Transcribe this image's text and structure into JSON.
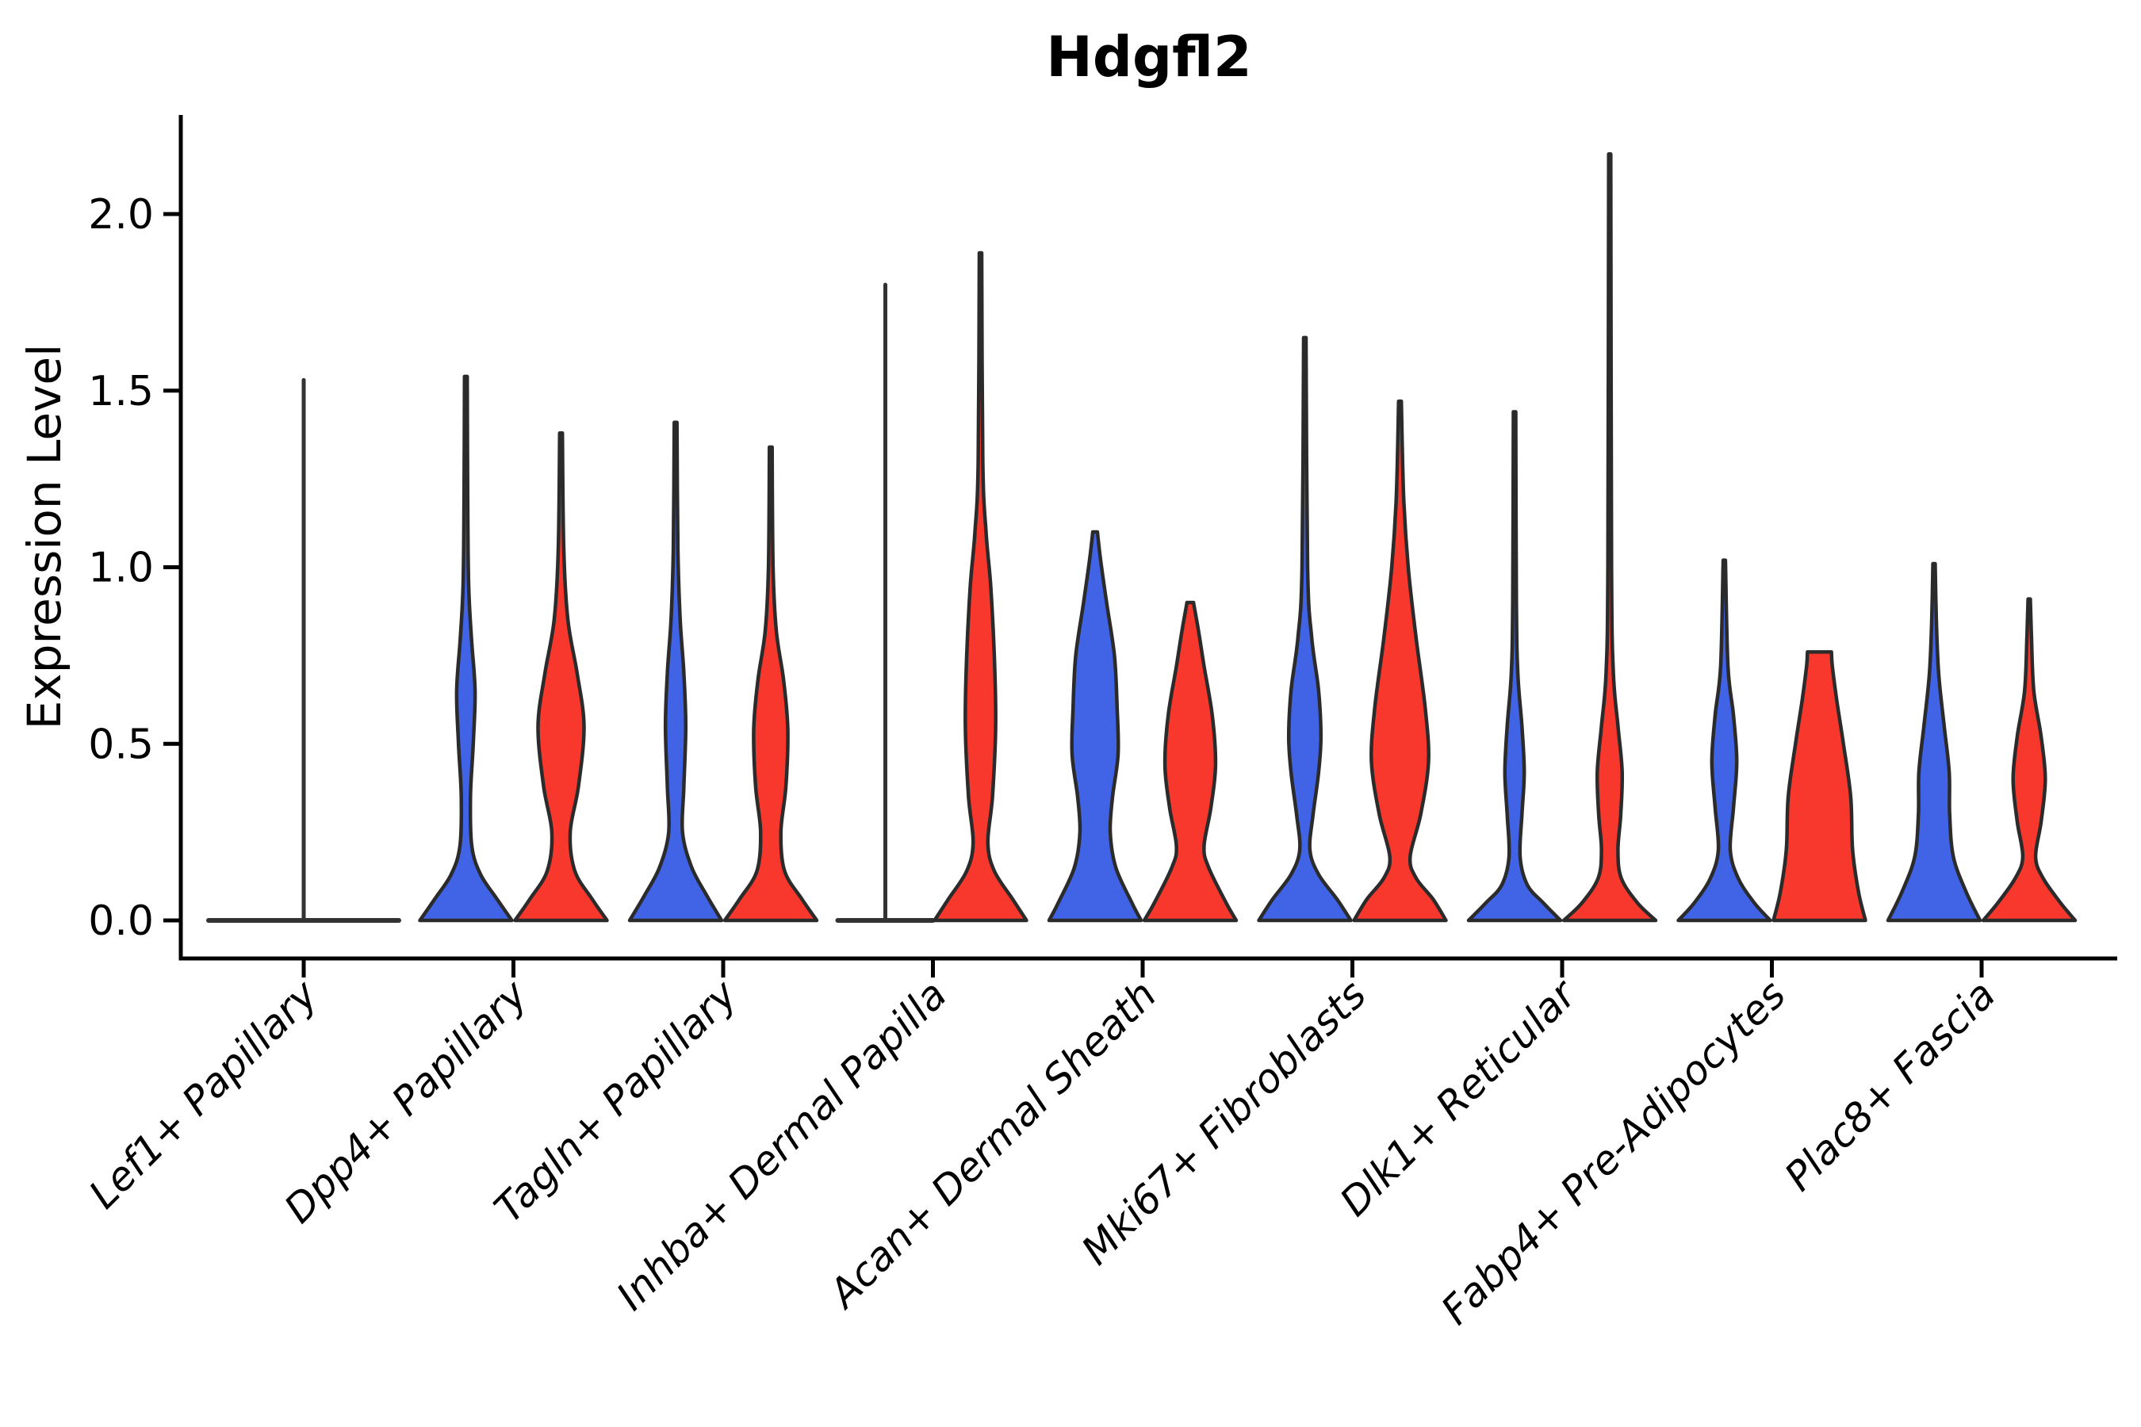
{
  "chart_data": {
    "type": "violin",
    "title": "Hdgfl2",
    "ylabel": "Expression Level",
    "xlabel": "",
    "ylim": [
      0,
      2.28
    ],
    "yticks": [
      0.0,
      0.5,
      1.0,
      1.5,
      2.0
    ],
    "ytick_labels": [
      "0.0",
      "0.5",
      "1.0",
      "1.5",
      "2.0"
    ],
    "grid": false,
    "legend": "none",
    "categories": [
      "Lef1+ Papillary",
      "Dpp4+ Papillary",
      "Tagln+ Papillary",
      "Inhba+ Dermal Papilla",
      "Acan+ Dermal Sheath",
      "Mki67+ Fibroblasts",
      "Dlk1+ Reticular",
      "Fabp4+ Pre-Adipocytes",
      "Plac8+ Fascia"
    ],
    "series_colors": {
      "blue": "#4064E5",
      "red": "#F8382D"
    },
    "violins": [
      {
        "category_index": 0,
        "group": "single",
        "flat": true,
        "max": 1.53,
        "center_offset": 0,
        "half_width": 120,
        "profile": []
      },
      {
        "category_index": 1,
        "group": "blue",
        "flat": false,
        "max": 1.54,
        "center_offset": -60,
        "half_width": 58,
        "profile": [
          [
            0,
            1
          ],
          [
            0.06,
            0.68
          ],
          [
            0.13,
            0.32
          ],
          [
            0.21,
            0.13
          ],
          [
            0.35,
            0.1
          ],
          [
            0.5,
            0.16
          ],
          [
            0.65,
            0.2
          ],
          [
            0.8,
            0.12
          ],
          [
            0.95,
            0.06
          ],
          [
            1.2,
            0.04
          ],
          [
            1.54,
            0.03
          ]
        ]
      },
      {
        "category_index": 1,
        "group": "red",
        "flat": false,
        "max": 1.38,
        "center_offset": 60,
        "half_width": 58,
        "profile": [
          [
            0,
            1
          ],
          [
            0.06,
            0.68
          ],
          [
            0.14,
            0.3
          ],
          [
            0.25,
            0.2
          ],
          [
            0.38,
            0.38
          ],
          [
            0.55,
            0.5
          ],
          [
            0.7,
            0.35
          ],
          [
            0.85,
            0.15
          ],
          [
            1.05,
            0.06
          ],
          [
            1.38,
            0.03
          ]
        ]
      },
      {
        "category_index": 2,
        "group": "blue",
        "flat": false,
        "max": 1.41,
        "center_offset": -60,
        "half_width": 58,
        "profile": [
          [
            0,
            1
          ],
          [
            0.07,
            0.68
          ],
          [
            0.15,
            0.35
          ],
          [
            0.25,
            0.15
          ],
          [
            0.38,
            0.18
          ],
          [
            0.55,
            0.22
          ],
          [
            0.7,
            0.18
          ],
          [
            0.85,
            0.1
          ],
          [
            1.05,
            0.05
          ],
          [
            1.41,
            0.03
          ]
        ]
      },
      {
        "category_index": 2,
        "group": "red",
        "flat": false,
        "max": 1.34,
        "center_offset": 60,
        "half_width": 58,
        "profile": [
          [
            0,
            1
          ],
          [
            0.06,
            0.68
          ],
          [
            0.14,
            0.3
          ],
          [
            0.25,
            0.22
          ],
          [
            0.38,
            0.33
          ],
          [
            0.54,
            0.37
          ],
          [
            0.68,
            0.28
          ],
          [
            0.82,
            0.12
          ],
          [
            1.0,
            0.05
          ],
          [
            1.34,
            0.03
          ]
        ]
      },
      {
        "category_index": 3,
        "group": "blue",
        "flat": true,
        "max": 1.8,
        "center_offset": -60,
        "half_width": 60,
        "profile": []
      },
      {
        "category_index": 3,
        "group": "red",
        "flat": false,
        "max": 1.89,
        "center_offset": 60,
        "half_width": 58,
        "profile": [
          [
            0,
            1
          ],
          [
            0.06,
            0.7
          ],
          [
            0.14,
            0.3
          ],
          [
            0.22,
            0.16
          ],
          [
            0.35,
            0.26
          ],
          [
            0.55,
            0.33
          ],
          [
            0.75,
            0.3
          ],
          [
            0.95,
            0.22
          ],
          [
            1.1,
            0.12
          ],
          [
            1.3,
            0.05
          ],
          [
            1.89,
            0.025
          ]
        ]
      },
      {
        "category_index": 4,
        "group": "blue",
        "flat": false,
        "max": 1.1,
        "center_offset": -60,
        "half_width": 58,
        "profile": [
          [
            0,
            1
          ],
          [
            0.05,
            0.8
          ],
          [
            0.15,
            0.45
          ],
          [
            0.25,
            0.33
          ],
          [
            0.35,
            0.38
          ],
          [
            0.47,
            0.5
          ],
          [
            0.6,
            0.48
          ],
          [
            0.75,
            0.42
          ],
          [
            0.9,
            0.25
          ],
          [
            1.02,
            0.12
          ],
          [
            1.1,
            0.05
          ]
        ]
      },
      {
        "category_index": 4,
        "group": "red",
        "flat": false,
        "max": 0.9,
        "center_offset": 60,
        "half_width": 58,
        "profile": [
          [
            0,
            1
          ],
          [
            0.05,
            0.78
          ],
          [
            0.15,
            0.4
          ],
          [
            0.21,
            0.3
          ],
          [
            0.32,
            0.45
          ],
          [
            0.44,
            0.55
          ],
          [
            0.58,
            0.48
          ],
          [
            0.72,
            0.3
          ],
          [
            0.82,
            0.18
          ],
          [
            0.9,
            0.07
          ]
        ]
      },
      {
        "category_index": 5,
        "group": "blue",
        "flat": false,
        "max": 1.65,
        "center_offset": -60,
        "half_width": 58,
        "profile": [
          [
            0,
            1
          ],
          [
            0.06,
            0.7
          ],
          [
            0.13,
            0.3
          ],
          [
            0.2,
            0.11
          ],
          [
            0.3,
            0.18
          ],
          [
            0.42,
            0.3
          ],
          [
            0.52,
            0.35
          ],
          [
            0.65,
            0.3
          ],
          [
            0.8,
            0.15
          ],
          [
            1.0,
            0.06
          ],
          [
            1.65,
            0.025
          ]
        ]
      },
      {
        "category_index": 5,
        "group": "red",
        "flat": false,
        "max": 1.47,
        "center_offset": 60,
        "half_width": 58,
        "profile": [
          [
            0,
            1
          ],
          [
            0.06,
            0.72
          ],
          [
            0.12,
            0.35
          ],
          [
            0.18,
            0.22
          ],
          [
            0.3,
            0.45
          ],
          [
            0.45,
            0.62
          ],
          [
            0.6,
            0.55
          ],
          [
            0.8,
            0.35
          ],
          [
            1.0,
            0.18
          ],
          [
            1.2,
            0.08
          ],
          [
            1.47,
            0.03
          ]
        ]
      },
      {
        "category_index": 6,
        "group": "blue",
        "flat": false,
        "max": 1.44,
        "center_offset": -60,
        "half_width": 58,
        "profile": [
          [
            0,
            1
          ],
          [
            0.05,
            0.62
          ],
          [
            0.1,
            0.28
          ],
          [
            0.18,
            0.12
          ],
          [
            0.3,
            0.16
          ],
          [
            0.42,
            0.21
          ],
          [
            0.55,
            0.16
          ],
          [
            0.7,
            0.07
          ],
          [
            0.9,
            0.04
          ],
          [
            1.44,
            0.025
          ]
        ]
      },
      {
        "category_index": 6,
        "group": "red",
        "flat": false,
        "max": 2.17,
        "center_offset": 60,
        "half_width": 58,
        "profile": [
          [
            0,
            1
          ],
          [
            0.05,
            0.6
          ],
          [
            0.12,
            0.25
          ],
          [
            0.2,
            0.18
          ],
          [
            0.3,
            0.24
          ],
          [
            0.42,
            0.27
          ],
          [
            0.55,
            0.18
          ],
          [
            0.7,
            0.08
          ],
          [
            1.0,
            0.04
          ],
          [
            2.17,
            0.022
          ]
        ]
      },
      {
        "category_index": 7,
        "group": "blue",
        "flat": false,
        "max": 1.02,
        "center_offset": -60,
        "half_width": 58,
        "profile": [
          [
            0,
            1
          ],
          [
            0.05,
            0.65
          ],
          [
            0.12,
            0.3
          ],
          [
            0.2,
            0.13
          ],
          [
            0.32,
            0.2
          ],
          [
            0.45,
            0.27
          ],
          [
            0.58,
            0.2
          ],
          [
            0.72,
            0.08
          ],
          [
            1.02,
            0.025
          ]
        ]
      },
      {
        "category_index": 7,
        "group": "red",
        "flat": false,
        "max": 0.76,
        "center_offset": 60,
        "half_width": 58,
        "profile": [
          [
            0,
            1
          ],
          [
            0.08,
            0.85
          ],
          [
            0.2,
            0.72
          ],
          [
            0.35,
            0.68
          ],
          [
            0.5,
            0.52
          ],
          [
            0.62,
            0.38
          ],
          [
            0.72,
            0.28
          ],
          [
            0.76,
            0.26
          ]
        ]
      },
      {
        "category_index": 8,
        "group": "blue",
        "flat": false,
        "max": 1.01,
        "center_offset": -60,
        "half_width": 58,
        "profile": [
          [
            0,
            1
          ],
          [
            0.08,
            0.7
          ],
          [
            0.18,
            0.42
          ],
          [
            0.3,
            0.34
          ],
          [
            0.42,
            0.33
          ],
          [
            0.55,
            0.22
          ],
          [
            0.7,
            0.1
          ],
          [
            0.85,
            0.05
          ],
          [
            1.01,
            0.025
          ]
        ]
      },
      {
        "category_index": 8,
        "group": "red",
        "flat": false,
        "max": 0.91,
        "center_offset": 60,
        "half_width": 58,
        "profile": [
          [
            0,
            1
          ],
          [
            0.05,
            0.68
          ],
          [
            0.12,
            0.3
          ],
          [
            0.18,
            0.14
          ],
          [
            0.28,
            0.26
          ],
          [
            0.4,
            0.35
          ],
          [
            0.52,
            0.26
          ],
          [
            0.65,
            0.1
          ],
          [
            0.8,
            0.05
          ],
          [
            0.91,
            0.025
          ]
        ]
      }
    ]
  }
}
